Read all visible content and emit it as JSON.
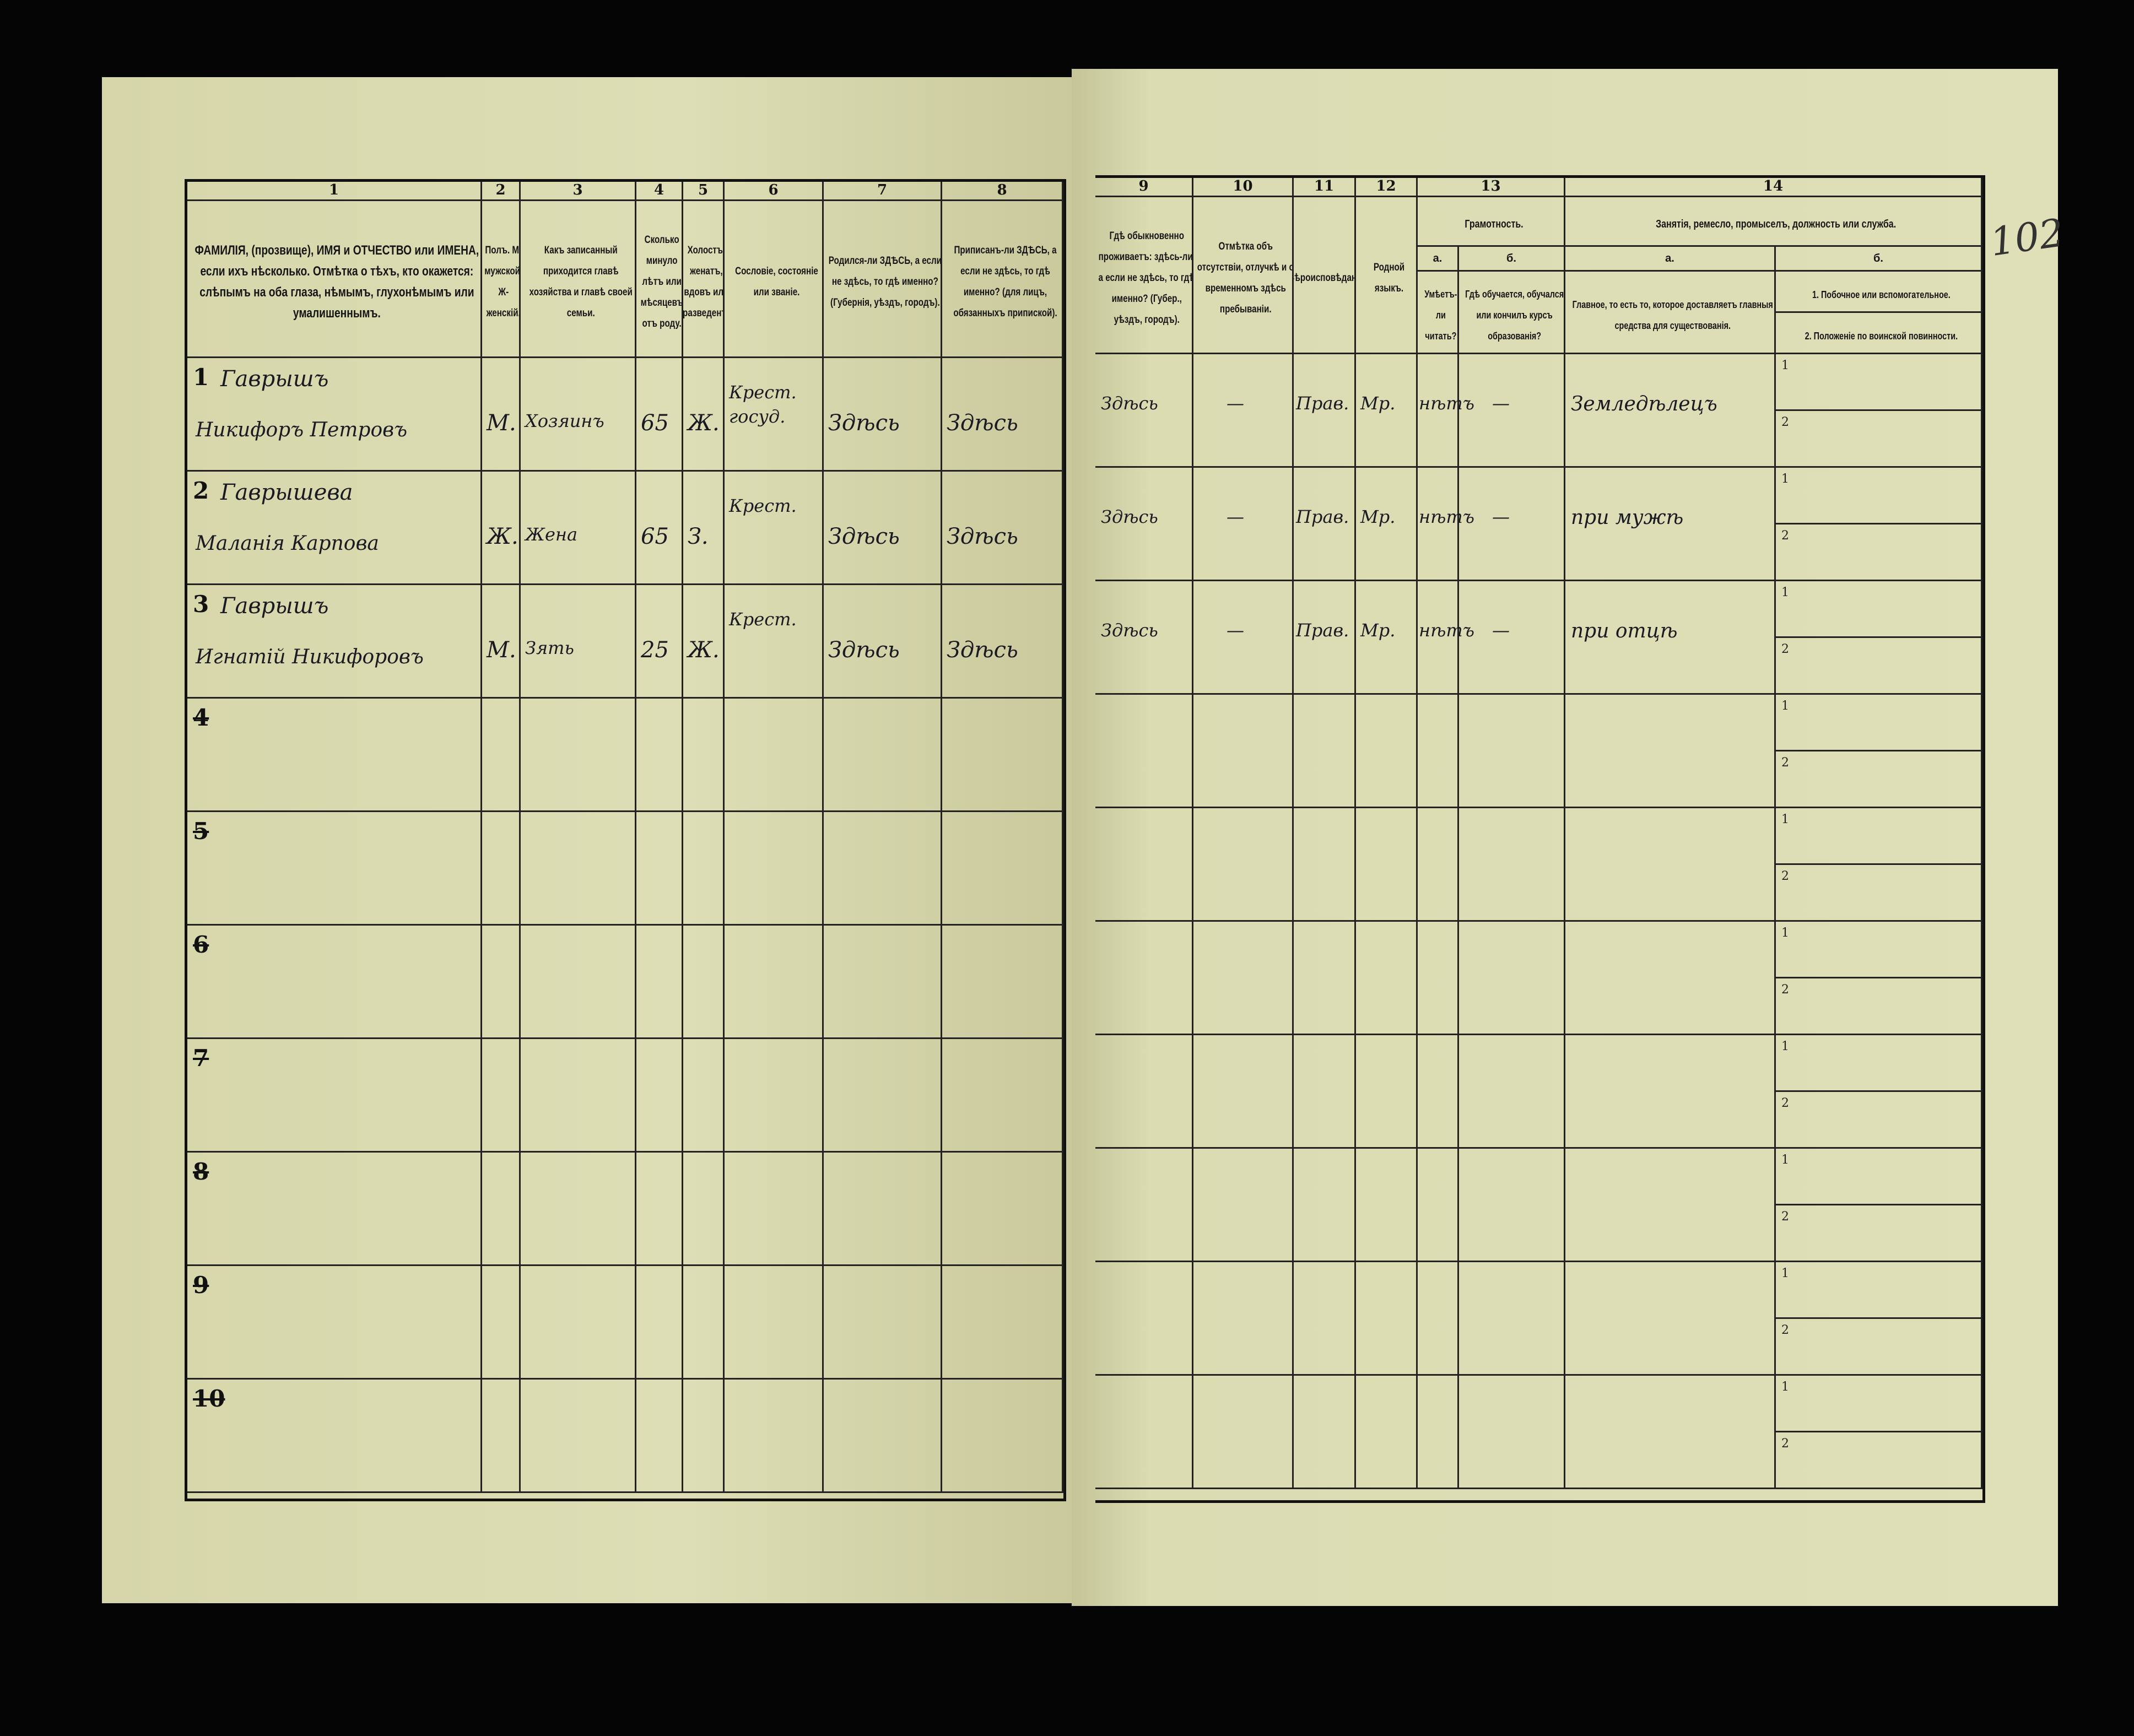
{
  "page_number": "102",
  "left_columns": [
    {
      "num": "1",
      "header": "ФАМИЛІЯ, (прозвище), ИМЯ и ОТЧЕСТВО или ИМЕНА, если ихъ нѣсколько. Отмѣтка о тѣхъ, кто окажется: слѣпымъ на оба глаза, нѣмымъ, глухонѣмымъ или умалишеннымъ."
    },
    {
      "num": "2",
      "header": "Полъ. М-мужской. Ж-женскій."
    },
    {
      "num": "3",
      "header": "Какъ записанный приходится главѣ хозяйства и главѣ своей семьи."
    },
    {
      "num": "4",
      "header": "Сколько минуло лѣтъ или мѣсяцевъ отъ роду."
    },
    {
      "num": "5",
      "header": "Холостъ, женатъ, вдовъ или разведенъ."
    },
    {
      "num": "6",
      "header": "Сословіе, состояніе или званіе."
    },
    {
      "num": "7",
      "header": "Родился-ли ЗДѢСЬ, а если не здѣсь, то гдѣ именно? (Губернія, уѣздъ, городъ)."
    },
    {
      "num": "8",
      "header": "Приписанъ-ли ЗДѢСЬ, а если не здѣсь, то гдѣ именно? (для лицъ, обязанныхъ припиской)."
    }
  ],
  "right_columns": [
    {
      "num": "9",
      "header": "Гдѣ обыкновенно проживаетъ: здѣсь-ли, а если не здѣсь, то гдѣ именно? (Губер., уѣздъ, городъ)."
    },
    {
      "num": "10",
      "header": "Отмѣтка объ отсутствіи, отлучкѣ и о временномъ здѣсь пребываніи."
    },
    {
      "num": "11",
      "header": "Вѣроисповѣданіе."
    },
    {
      "num": "12",
      "header": "Родной языкъ."
    },
    {
      "num": "13",
      "group": "Грамотность.",
      "sub_a": "а.",
      "sub_b": "б.",
      "header_a": "Умѣетъ-ли читать?",
      "header_b": "Гдѣ обучается, обучался или кончилъ курсъ образованія?"
    },
    {
      "num": "14",
      "group": "Занятія, ремесло, промыселъ, должность или служба.",
      "sub_a": "а.",
      "sub_b": "б.",
      "header_a": "Главное, то есть то, которое доставляетъ главныя средства для существованія.",
      "header_b1": "1. Побочное или вспомогательное.",
      "header_b2": "2. Положеніе по воинской повинности."
    }
  ],
  "sublines": [
    "1",
    "2"
  ],
  "rows": [
    {
      "n": "1",
      "surname": "Гаврышъ",
      "name": "Никифоръ Петровъ",
      "sex": "М.",
      "relation": "Хозяинъ",
      "age": "65",
      "marital": "Ж.",
      "estate": "Крест. госуд.",
      "born": "Здѣсь",
      "registered": "Здѣсь",
      "residence": "Здѣсь",
      "absence": "—",
      "religion": "Прав.",
      "language": "Мр.",
      "literate": "нѣтъ",
      "education": "—",
      "occupation": "Земледѣлецъ"
    },
    {
      "n": "2",
      "surname": "Гаврышева",
      "name": "Маланія Карпова",
      "sex": "Ж.",
      "relation": "Жена",
      "age": "65",
      "marital": "З.",
      "estate": "Крест.",
      "born": "Здѣсь",
      "registered": "Здѣсь",
      "residence": "Здѣсь",
      "absence": "—",
      "religion": "Прав.",
      "language": "Мр.",
      "literate": "нѣтъ",
      "education": "—",
      "occupation": "при мужѣ"
    },
    {
      "n": "3",
      "surname": "Гаврышъ",
      "name": "Игнатій Никифоровъ",
      "sex": "М.",
      "relation": "Зять",
      "age": "25",
      "marital": "Ж.",
      "estate": "Крест.",
      "born": "Здѣсь",
      "registered": "Здѣсь",
      "residence": "Здѣсь",
      "absence": "—",
      "religion": "Прав.",
      "language": "Мр.",
      "literate": "нѣтъ",
      "education": "—",
      "occupation": "при отцѣ"
    },
    {
      "n": "4"
    },
    {
      "n": "5"
    },
    {
      "n": "6"
    },
    {
      "n": "7"
    },
    {
      "n": "8"
    },
    {
      "n": "9"
    },
    {
      "n": "10"
    }
  ]
}
